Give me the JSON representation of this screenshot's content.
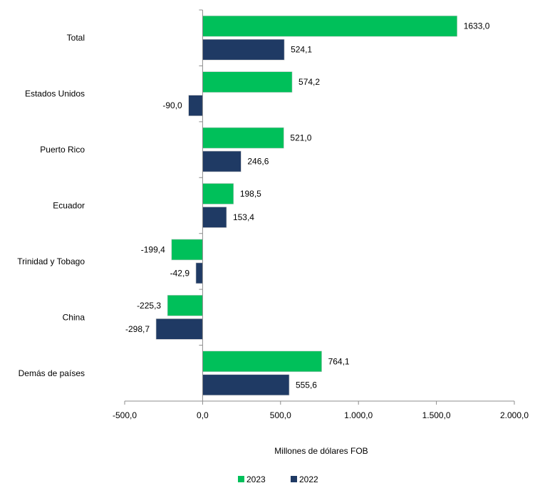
{
  "chart_data": {
    "type": "bar",
    "orientation": "horizontal",
    "categories": [
      "Total",
      "Estados Unidos",
      "Puerto Rico",
      "Ecuador",
      "Trinidad y Tobago",
      "China",
      "Demás de países"
    ],
    "series": [
      {
        "name": "2023",
        "color": "#00c05a",
        "values": [
          1633.0,
          574.2,
          521.0,
          198.5,
          -199.4,
          -225.3,
          764.1
        ],
        "labels": [
          "1633,0",
          "574,2",
          "521,0",
          "198,5",
          "-199,4",
          "-225,3",
          "764,1"
        ]
      },
      {
        "name": "2022",
        "color": "#1f3a64",
        "values": [
          524.1,
          -90.0,
          246.6,
          153.4,
          -42.9,
          -298.7,
          555.6
        ],
        "labels": [
          "524,1",
          "-90,0",
          "246,6",
          "153,4",
          "-42,9",
          "-298,7",
          "555,6"
        ]
      }
    ],
    "xlabel": "Millones de dólares FOB",
    "xlim": [
      -500,
      2000
    ],
    "ticks": [
      -500,
      0,
      500,
      1000,
      1500,
      2000
    ],
    "tick_labels": [
      "-500,0",
      "0,0",
      "500,0",
      "1.000,0",
      "1.500,0",
      "2.000,0"
    ],
    "grid": false,
    "legend_position": "bottom"
  }
}
